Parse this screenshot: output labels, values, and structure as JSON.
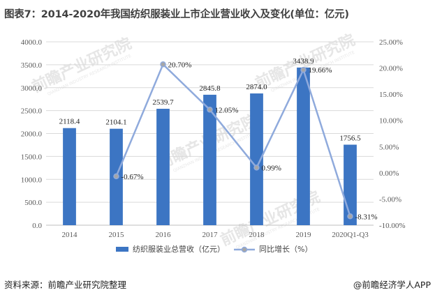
{
  "page_title": "图表7：2014-2020年我国纺织服装业上市企业营业收入及变化(单位：亿元)",
  "source_text": "资料来源：前瞻产业研究院整理",
  "brand_text": "@前瞻经济学人APP",
  "watermark_text": "前瞻产业研究院",
  "watermark_subtext": "QIANZHAN INDUSTRY RESEARCH INSTITUTE",
  "colors": {
    "bar": "#3C75C3",
    "line": "#8FAADC",
    "marker_fill": "#A6A6A6",
    "grid": "#D9D9D9"
  },
  "chart_data": {
    "type": "bar",
    "title": "图表7：2014-2020年我国纺织服装业上市企业营业收入及变化(单位：亿元)",
    "categories": [
      "2014",
      "2015",
      "2016",
      "2017",
      "2018",
      "2019",
      "2020Q1-Q3"
    ],
    "series": [
      {
        "name": "纺织服装业总营收（亿元）",
        "type": "bar",
        "axis": "left",
        "values": [
          2118.4,
          2104.1,
          2539.7,
          2845.8,
          2874.0,
          3438.9,
          1756.5
        ],
        "labels": [
          "2118.4",
          "2104.1",
          "2539.7",
          "2845.8",
          "2874.0",
          "3438.9",
          "1756.5"
        ]
      },
      {
        "name": "同比增长（%）",
        "type": "line",
        "axis": "right",
        "values": [
          null,
          -0.67,
          20.7,
          12.05,
          0.99,
          19.66,
          -8.31
        ],
        "labels": [
          "",
          "-0.67%",
          "20.70%",
          "12.05%",
          "0.99%",
          "19.66%",
          "-8.31%"
        ]
      }
    ],
    "y_left": {
      "min": 0,
      "max": 4000,
      "step": 500,
      "ticks": [
        "0.0",
        "500.0",
        "1000.0",
        "1500.0",
        "2000.0",
        "2500.0",
        "3000.0",
        "3500.0",
        "4000.0"
      ]
    },
    "y_right": {
      "min": -10,
      "max": 25,
      "step": 5,
      "ticks": [
        "-10.00%",
        "-5.00%",
        "0.00%",
        "5.00%",
        "10.00%",
        "15.00%",
        "20.00%",
        "25.00%"
      ]
    },
    "legend": [
      "纺织服装业总营收（亿元）",
      "同比增长（%）"
    ],
    "legend_position": "bottom",
    "grid": true
  }
}
